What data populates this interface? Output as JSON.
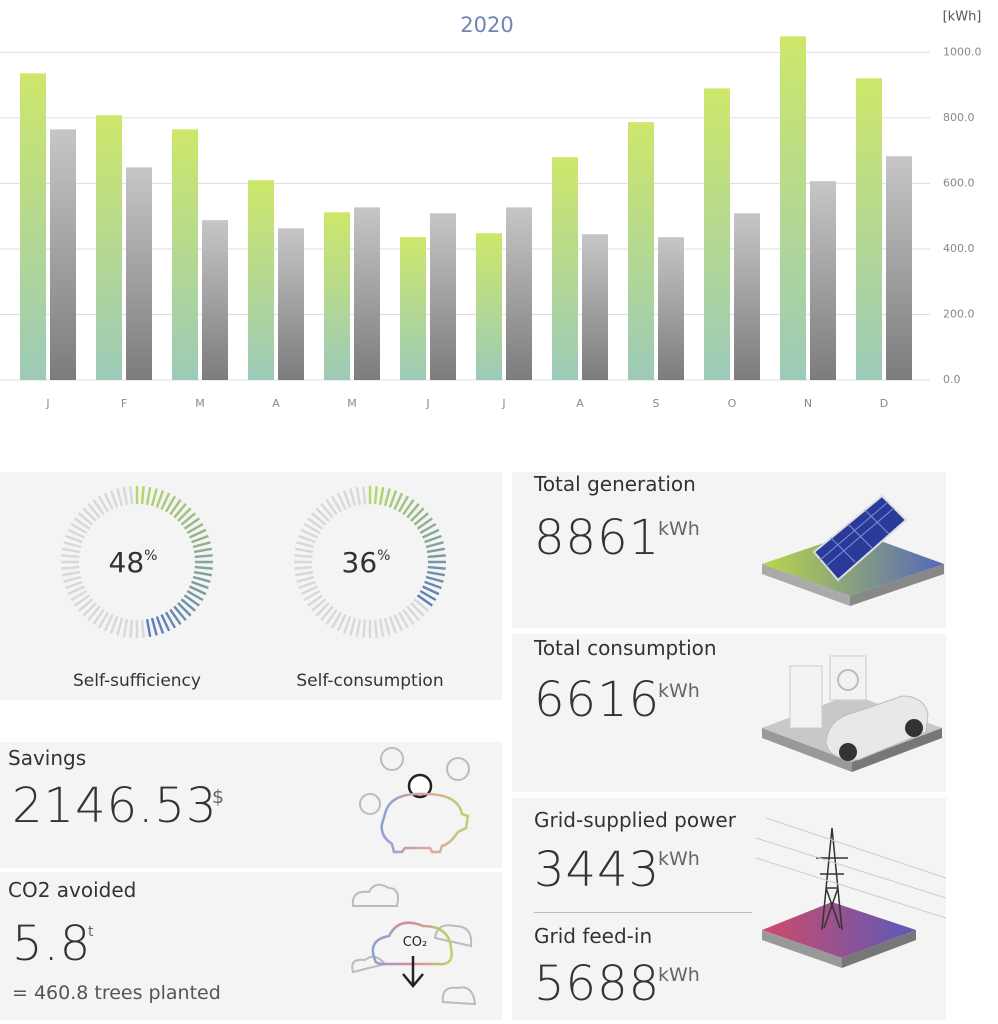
{
  "chart_data": {
    "type": "bar",
    "title": "2020",
    "unit_label": "[kWh]",
    "categories": [
      "J",
      "F",
      "M",
      "A",
      "M",
      "J",
      "J",
      "A",
      "S",
      "O",
      "N",
      "D"
    ],
    "series": [
      {
        "color": "#cde76a",
        "color_bottom": "#9ccab8",
        "values": [
          936,
          808,
          765,
          610,
          512,
          436,
          448,
          680,
          787,
          890,
          1049,
          921
        ]
      },
      {
        "color": "#c6c6c6",
        "color_bottom": "#7c7c7c",
        "values": [
          765,
          649,
          488,
          463,
          527,
          509,
          527,
          445,
          436,
          509,
          607,
          683
        ]
      }
    ],
    "ylim": [
      0,
      1050
    ],
    "yticks": [
      {
        "value": 0,
        "label": "0.0"
      },
      {
        "value": 200,
        "label": "200.0"
      },
      {
        "value": 400,
        "label": "400.0"
      },
      {
        "value": 600,
        "label": "600.0"
      },
      {
        "value": 800,
        "label": "800.0"
      },
      {
        "value": 1000,
        "label": "1000.0"
      }
    ],
    "grid": true
  },
  "gauge_colors": [
    "#b5d86a",
    "#5b7bbd"
  ],
  "gauges": [
    {
      "value": 48,
      "unit": "%",
      "label": "Self-sufficiency"
    },
    {
      "value": 36,
      "unit": "%",
      "label": "Self-consumption"
    }
  ],
  "savings": {
    "label": "Savings",
    "value": 2146.53,
    "unit": "$"
  },
  "co2": {
    "label": "CO2 avoided",
    "value": 5.8,
    "unit": "t",
    "note": "= 460.8 trees planted",
    "icon_text": "CO₂"
  },
  "generation": {
    "label": "Total generation",
    "value": 8861,
    "unit": "kWh"
  },
  "consumption": {
    "label": "Total consumption",
    "value": 6616,
    "unit": "kWh"
  },
  "grid_supplied": {
    "label": "Grid-supplied power",
    "value": 3443,
    "unit": "kWh"
  },
  "grid_feed_in": {
    "label": "Grid feed-in",
    "value": 5688,
    "unit": "kWh"
  }
}
